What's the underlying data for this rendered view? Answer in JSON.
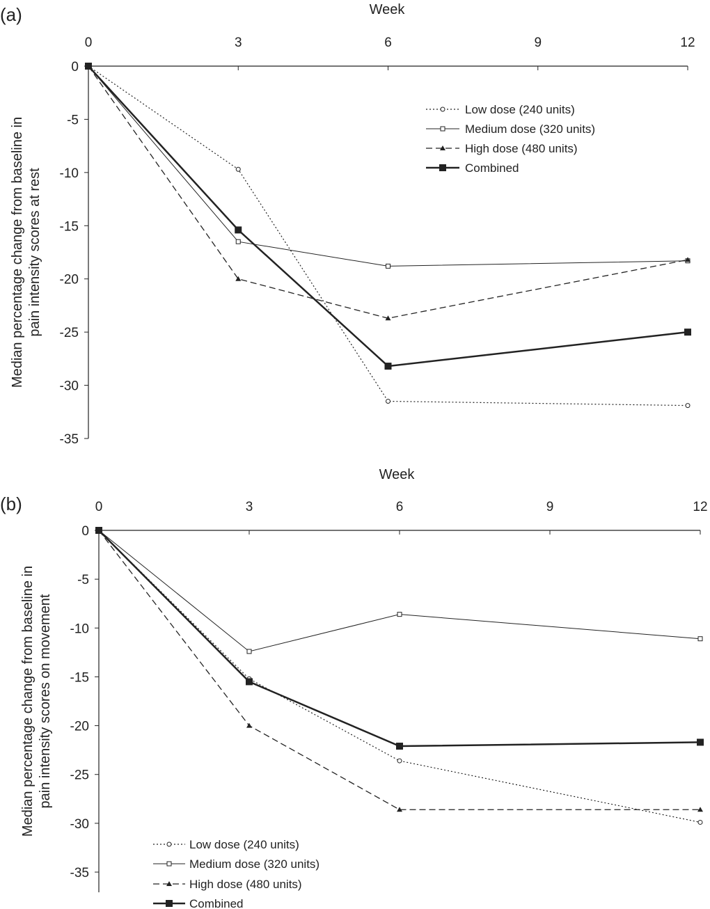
{
  "chart_data": [
    {
      "type": "line",
      "panel_label": "(a)",
      "xlabel": "Week",
      "ylabel": [
        "Median percentage change from baseline in",
        "pain intensity scores at rest"
      ],
      "x_ticks": [
        0,
        3,
        6,
        9,
        12
      ],
      "y_ticks": [
        0,
        -5,
        -10,
        -15,
        -20,
        -25,
        -30,
        -35
      ],
      "xlim": [
        0,
        12
      ],
      "ylim": [
        -35,
        0
      ],
      "x_axis_position": "top",
      "grid": false,
      "legend_position": "top-right",
      "x": [
        0,
        3,
        6,
        12
      ],
      "series": [
        {
          "name": "Low dose (240 units)",
          "style": "dotted",
          "marker": "open-circle",
          "values": [
            0,
            -9.7,
            -31.5,
            -31.9
          ]
        },
        {
          "name": "Medium dose (320 units)",
          "style": "solid-thin",
          "marker": "open-square",
          "values": [
            0,
            -16.5,
            -18.8,
            -18.3
          ]
        },
        {
          "name": "High dose (480 units)",
          "style": "dashed",
          "marker": "filled-triangle",
          "values": [
            0,
            -20.0,
            -23.7,
            -18.2
          ]
        },
        {
          "name": "Combined",
          "style": "solid-thick",
          "marker": "filled-square",
          "values": [
            0,
            -15.4,
            -28.2,
            -25.0
          ]
        }
      ]
    },
    {
      "type": "line",
      "panel_label": "(b)",
      "xlabel": "Week",
      "ylabel": [
        "Median percentage change from baseline in",
        "pain intensity scores on movement"
      ],
      "x_ticks": [
        0,
        3,
        6,
        9,
        12
      ],
      "y_ticks": [
        0,
        -5,
        -10,
        -15,
        -20,
        -25,
        -30,
        -35
      ],
      "xlim": [
        0,
        12
      ],
      "ylim": [
        -35,
        0
      ],
      "x_axis_position": "top",
      "grid": false,
      "legend_position": "bottom-left",
      "x": [
        0,
        3,
        6,
        12
      ],
      "series": [
        {
          "name": "Low dose (240 units)",
          "style": "dotted",
          "marker": "open-circle",
          "values": [
            0,
            -15.2,
            -23.6,
            -29.9
          ]
        },
        {
          "name": "Medium dose (320 units)",
          "style": "solid-thin",
          "marker": "open-square",
          "values": [
            0,
            -12.4,
            -8.6,
            -11.1
          ]
        },
        {
          "name": "High dose (480 units)",
          "style": "dashed",
          "marker": "filled-triangle",
          "values": [
            0,
            -20.0,
            -28.6,
            -28.6
          ]
        },
        {
          "name": "Combined",
          "style": "solid-thick",
          "marker": "filled-square",
          "values": [
            0,
            -15.5,
            -22.1,
            -21.7
          ]
        }
      ]
    }
  ]
}
